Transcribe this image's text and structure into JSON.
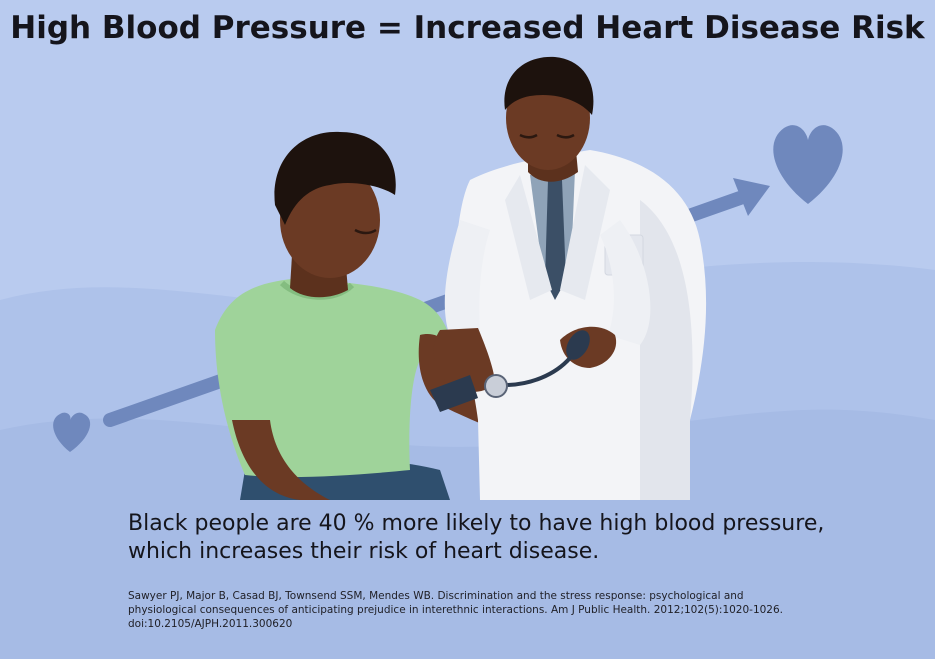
{
  "title": "High Blood Pressure = Increased Heart Disease Risk",
  "statement": {
    "line1": "Black people are 40 % more likely to have high blood pressure,",
    "line2": "which increases their risk of heart disease."
  },
  "citation": {
    "line1": "Sawyer PJ, Major B, Casad BJ, Townsend SSM, Mendes WB. Discrimination and the stress response: psychological and",
    "line2": "physiological consequences of anticipating prejudice in interethnic interactions. Am J Public Health. 2012;102(5):1020-1026.",
    "line3": "doi:10.2105/AJPH.2011.300620"
  },
  "colors": {
    "background": "#b9cbef",
    "wave": "#a8bde6",
    "arrow_and_hearts": "#6f88bd",
    "patient_shirt": "#9fd39a",
    "doctor_coat": "#f3f4f7",
    "skin": "#6b3a24"
  },
  "illustration": {
    "icons": [
      "heart-icon",
      "arrow-icon",
      "heart-icon"
    ]
  }
}
